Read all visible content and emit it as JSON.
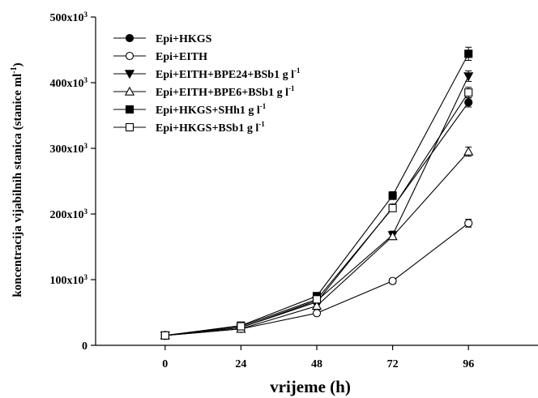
{
  "chart_data": {
    "type": "line",
    "xlabel": "vrijeme (h)",
    "ylabel": "koncentracija vijabilnih stanica (stanice ml⁻¹)",
    "x": [
      0,
      24,
      48,
      72,
      96
    ],
    "xlim": [
      -22,
      118
    ],
    "ylim": [
      0,
      500000
    ],
    "x_ticks": [
      "0",
      "24",
      "48",
      "72",
      "96"
    ],
    "y_ticks": [
      {
        "value": 0,
        "label": "0"
      },
      {
        "value": 100000,
        "label": "100x10³"
      },
      {
        "value": 200000,
        "label": "200x10³"
      },
      {
        "value": 300000,
        "label": "300x10³"
      },
      {
        "value": 400000,
        "label": "400x10³"
      },
      {
        "value": 500000,
        "label": "500x10³"
      }
    ],
    "grid": false,
    "legend_position": "top-left",
    "error_bars": true,
    "series": [
      {
        "name": "Epi+HKGS",
        "marker": "circle",
        "fill": "filled",
        "values": [
          15000,
          27000,
          66000,
          210000,
          370000
        ],
        "errors": [
          2000,
          3000,
          4000,
          5000,
          7000
        ]
      },
      {
        "name": "Epi+EITH",
        "marker": "circle",
        "fill": "open",
        "values": [
          15000,
          25000,
          49000,
          98000,
          186000
        ],
        "errors": [
          2000,
          3000,
          4000,
          4000,
          6000
        ]
      },
      {
        "name": "Epi+EITH+BPE24+BSb1 g l-1",
        "marker": "triangle-down",
        "fill": "filled",
        "values": [
          15000,
          27000,
          68000,
          168000,
          410000
        ],
        "errors": [
          2000,
          3000,
          4000,
          6000,
          8000
        ]
      },
      {
        "name": "Epi+EITH+BPE6+BSb1 g l-1",
        "marker": "triangle-up",
        "fill": "open",
        "values": [
          15000,
          25000,
          60000,
          166000,
          295000
        ],
        "errors": [
          2000,
          3000,
          4000,
          5000,
          7000
        ]
      },
      {
        "name": "Epi+HKGS+SHh1 g l-1",
        "marker": "square",
        "fill": "filled",
        "values": [
          15000,
          30000,
          75000,
          228000,
          444000
        ],
        "errors": [
          2000,
          3000,
          5000,
          6000,
          10000
        ]
      },
      {
        "name": "Epi+HKGS+BSb1 g l-1",
        "marker": "square",
        "fill": "open",
        "values": [
          15000,
          29000,
          70000,
          209000,
          385000
        ],
        "errors": [
          2000,
          3000,
          4000,
          5000,
          8000
        ]
      }
    ]
  }
}
